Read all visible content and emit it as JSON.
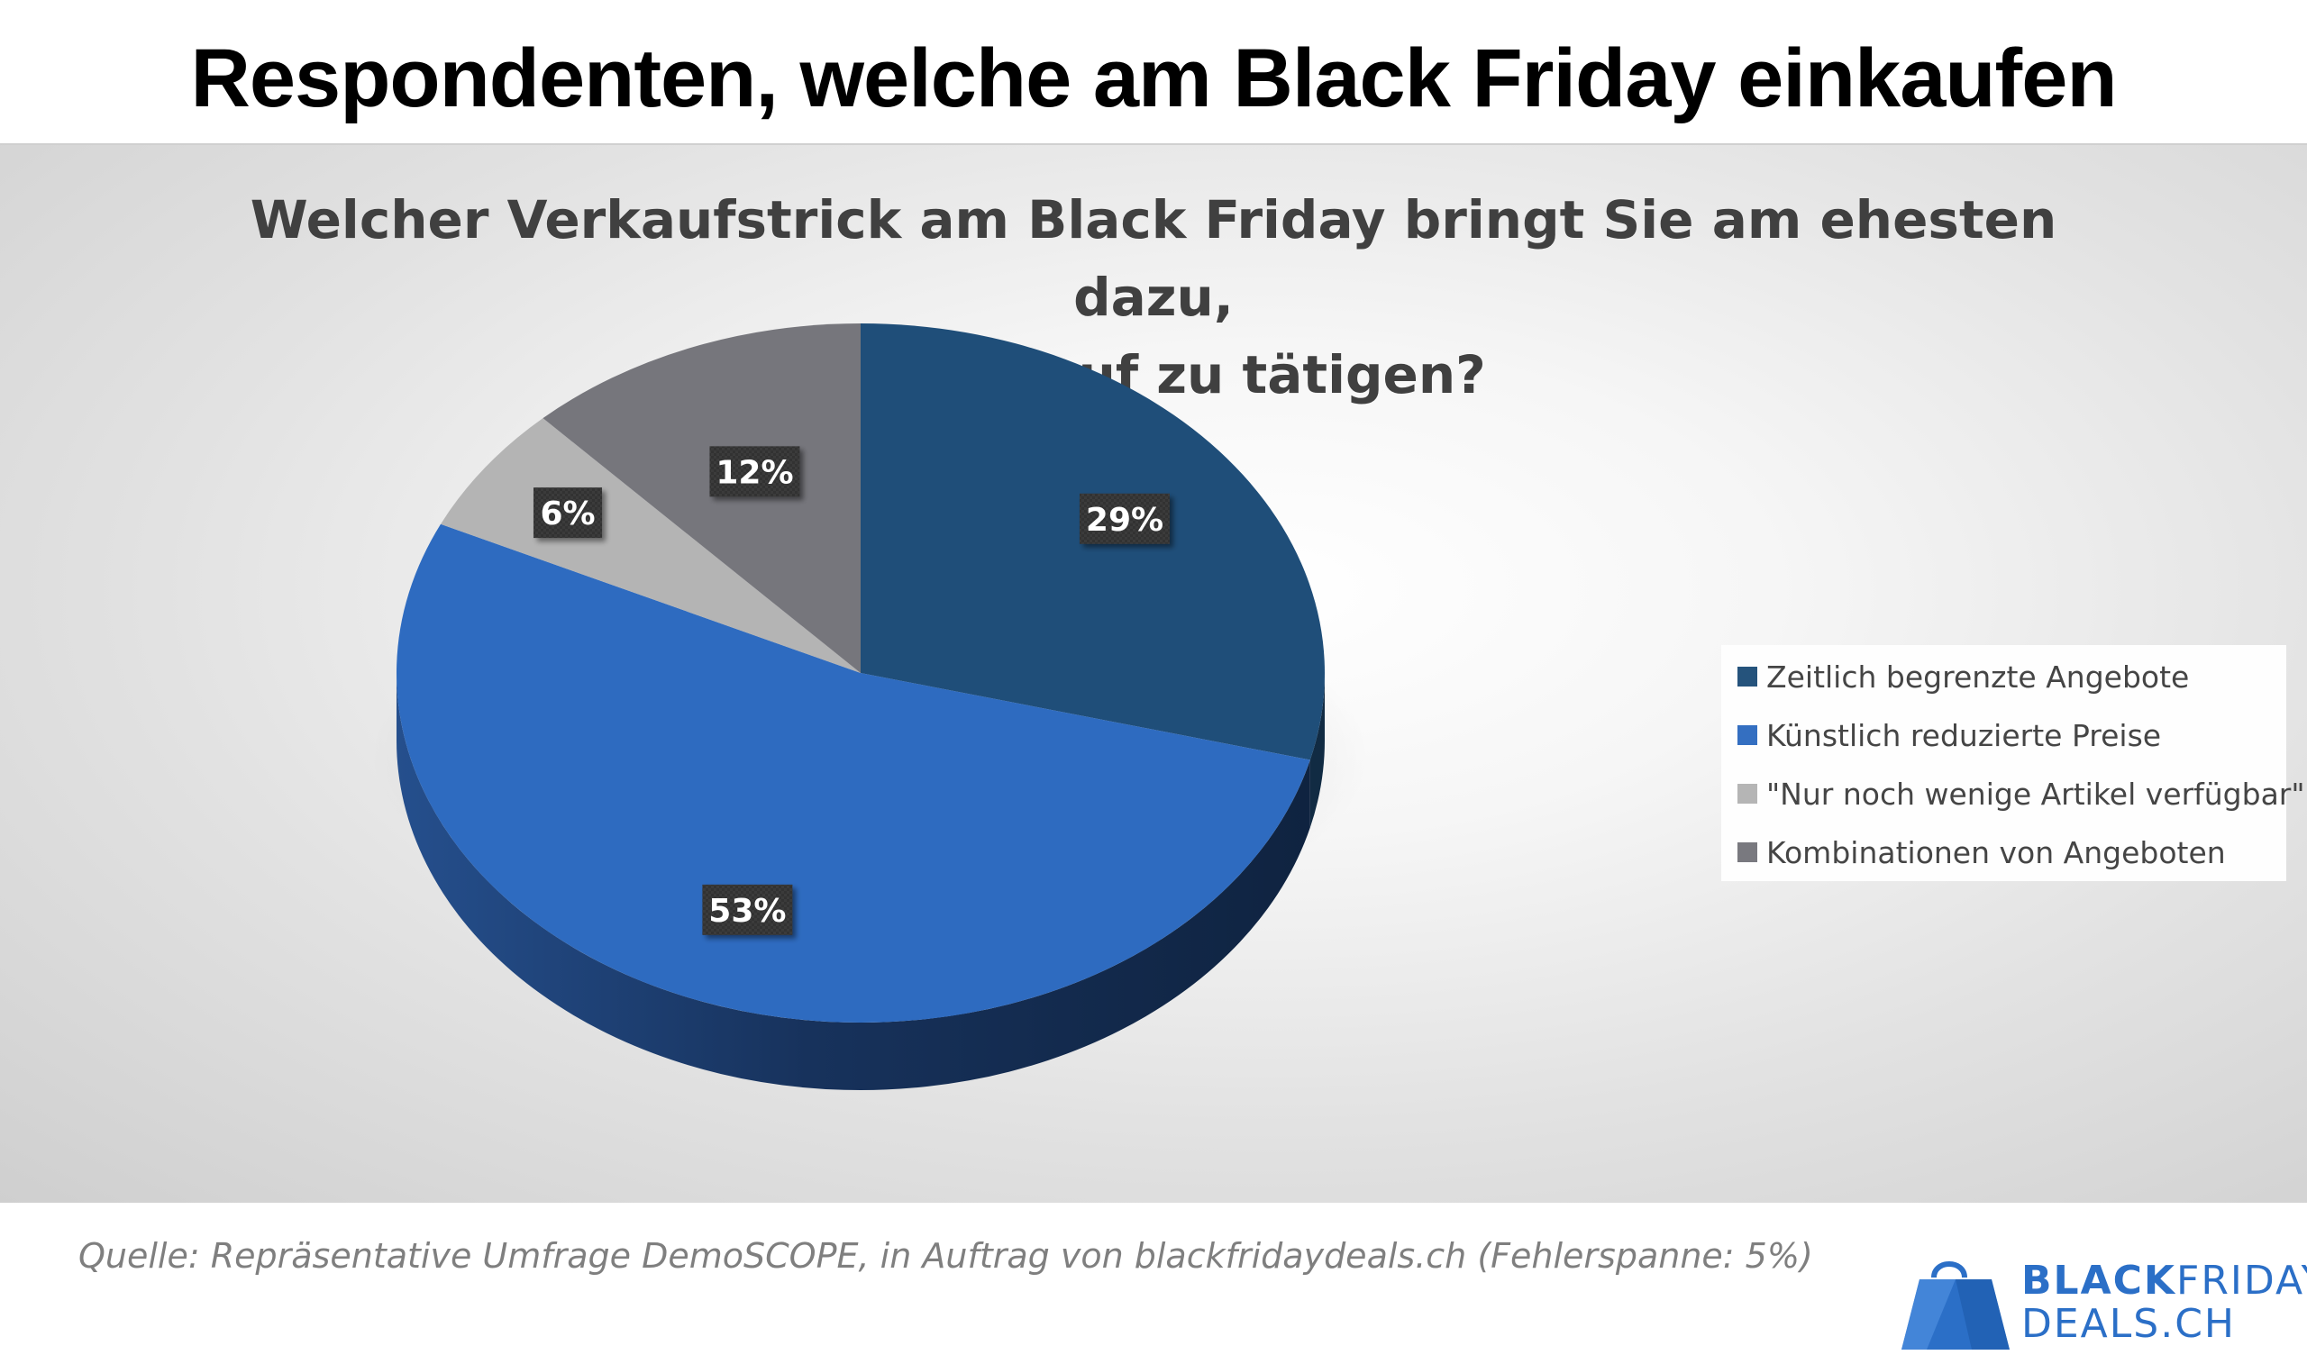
{
  "page_title": "Respondenten, welche am Black Friday einkaufen",
  "source_note": "Quelle: Repräsentative Umfrage DemoSCOPE, in Auftrag von blackfridaydeals.ch (Fehlerspanne: 5%)",
  "logo": {
    "line1_bold": "BLACK",
    "line1_light": "FRIDAY",
    "line2": "DEALS.CH",
    "color": "#2B6FC7"
  },
  "chart_data": {
    "type": "pie",
    "title_lines": [
      "Welcher Verkaufstrick am Black Friday bringt Sie am ehesten dazu,",
      "einen Kauf zu tätigen?"
    ],
    "three_d": true,
    "legend_position": "right",
    "start_angle_deg": 90,
    "direction": "clockwise",
    "slices": [
      {
        "label": "Zeitlich begrenzte Angebote",
        "value": 29,
        "display": "29%",
        "color": "#1F4E79"
      },
      {
        "label": "Künstlich reduzierte Preise",
        "value": 53,
        "display": "53%",
        "color": "#2E6BC0"
      },
      {
        "label": "\"Nur noch wenige Artikel verfügbar\"",
        "value": 6,
        "display": "6%",
        "color": "#B4B4B4"
      },
      {
        "label": "Kombinationen von Angeboten",
        "value": 12,
        "display": "12%",
        "color": "#76767C"
      }
    ]
  }
}
